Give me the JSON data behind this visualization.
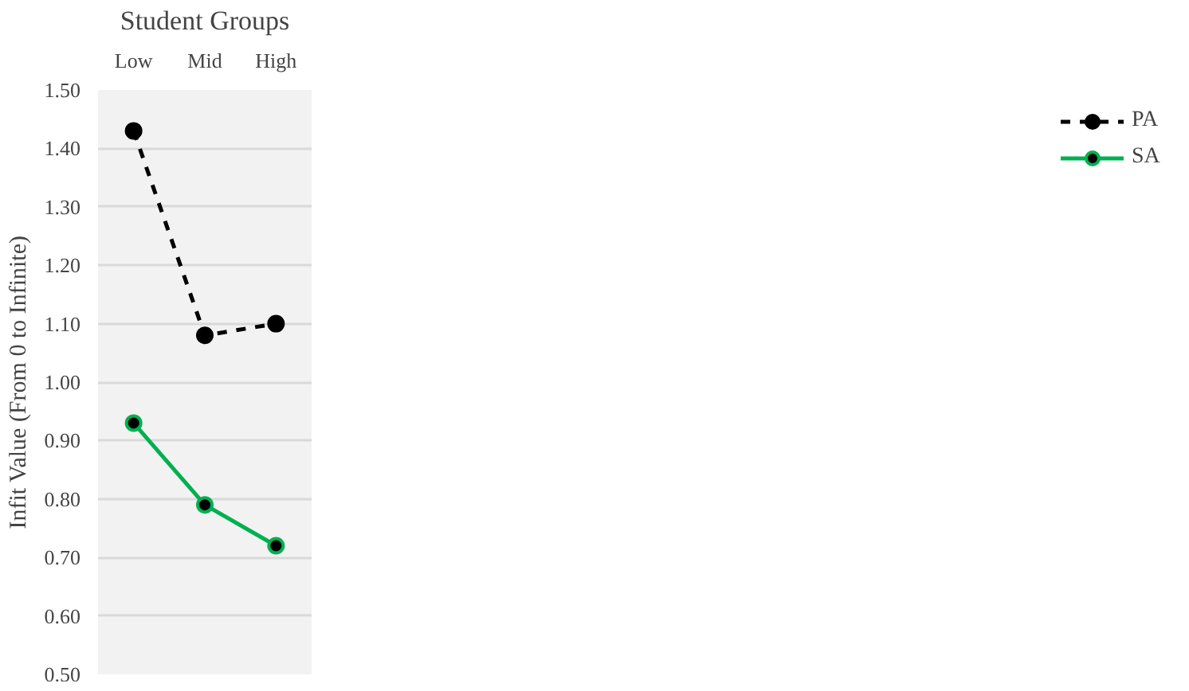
{
  "chart_data": {
    "type": "line",
    "xlabel": "Student Groups",
    "ylabel": "Infit Value (From 0 to Infinite)",
    "categories": [
      "Low",
      "Mid",
      "High"
    ],
    "series": [
      {
        "name": "PA",
        "color": "#000000",
        "values": [
          1.43,
          1.08,
          1.1
        ],
        "line_style": "dashed"
      },
      {
        "name": "SA",
        "color": "#00b050",
        "values": [
          0.93,
          0.79,
          0.72
        ],
        "line_style": "solid"
      }
    ],
    "ylim": [
      0.5,
      1.5
    ],
    "yticks": [
      {
        "value": 0.5,
        "label": "0.50"
      },
      {
        "value": 0.6,
        "label": "0.60"
      },
      {
        "value": 0.7,
        "label": "0.70"
      },
      {
        "value": 0.8,
        "label": "0.80"
      },
      {
        "value": 0.9,
        "label": "0.90"
      },
      {
        "value": 1.0,
        "label": "1.00"
      },
      {
        "value": 1.1,
        "label": "1.10"
      },
      {
        "value": 1.2,
        "label": "1.20"
      },
      {
        "value": 1.3,
        "label": "1.30"
      },
      {
        "value": 1.4,
        "label": "1.40"
      },
      {
        "value": 1.5,
        "label": "1.50"
      }
    ],
    "grid": "y",
    "legend": "right",
    "marker": "circle"
  }
}
